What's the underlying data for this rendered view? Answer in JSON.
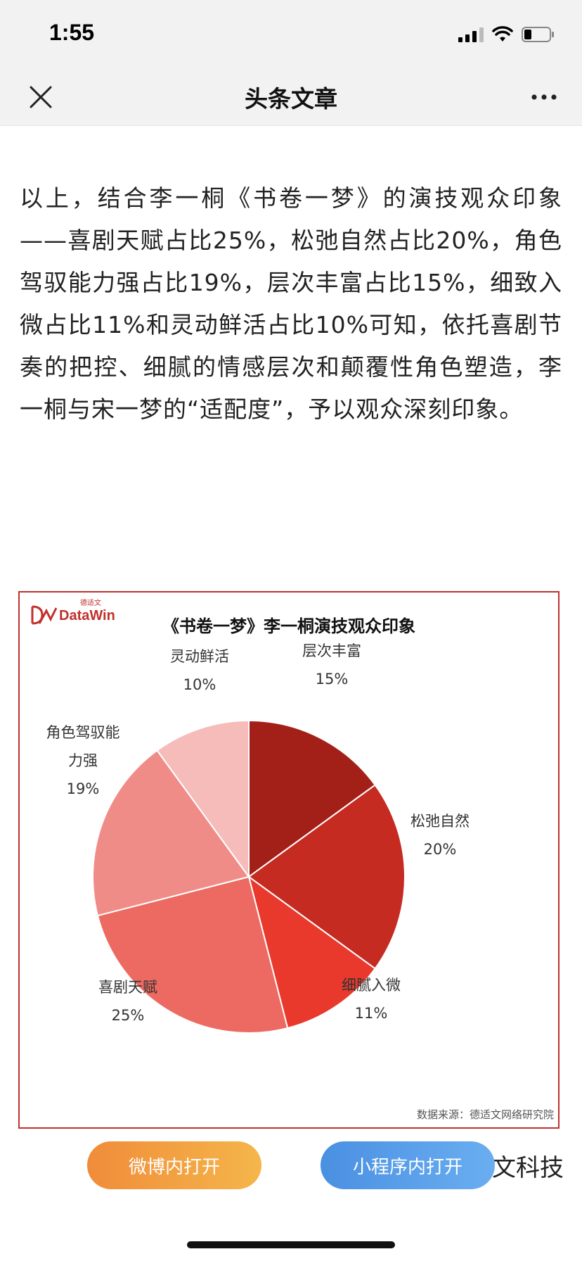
{
  "status_bar": {
    "time": "1:55"
  },
  "nav": {
    "title": "头条文章"
  },
  "article": {
    "paragraph": "以上，结合李一桐《书卷一梦》的演技观众印象——喜剧天赋占比25%，松弛自然占比20%，角色驾驭能力强占比19%，层次丰富占比15%，细致入微占比11%和灵动鲜活占比10%可知，依托喜剧节奏的把控、细腻的情感层次和颠覆性角色塑造，李一桐与宋一梦的“适配度”，予以观众深刻印象。"
  },
  "chart_logo": {
    "cn": "德适文",
    "en": "DataWin"
  },
  "chart_source": "数据来源：德适文网络研究院",
  "chart_data": {
    "type": "pie",
    "title": "《书卷一梦》李一桐演技观众印象",
    "slices": [
      {
        "label": "层次丰富",
        "value": 15,
        "value_label": "15%",
        "color": "#a32018"
      },
      {
        "label": "松弛自然",
        "value": 20,
        "value_label": "20%",
        "color": "#c62b22"
      },
      {
        "label": "细腻入微",
        "value": 11,
        "value_label": "11%",
        "color": "#e8392c"
      },
      {
        "label": "喜剧天赋",
        "value": 25,
        "value_label": "25%",
        "color": "#ec6a62"
      },
      {
        "label": "角色驾驭能力强",
        "value": 19,
        "value_label": "19%",
        "color": "#f08c87"
      },
      {
        "label": "灵动鲜活",
        "value": 10,
        "value_label": "10%",
        "color": "#f5bcba"
      }
    ]
  },
  "buttons": {
    "weibo": "微博内打开",
    "miniprogram": "小程序内打开"
  },
  "trailing_text": "文科技"
}
